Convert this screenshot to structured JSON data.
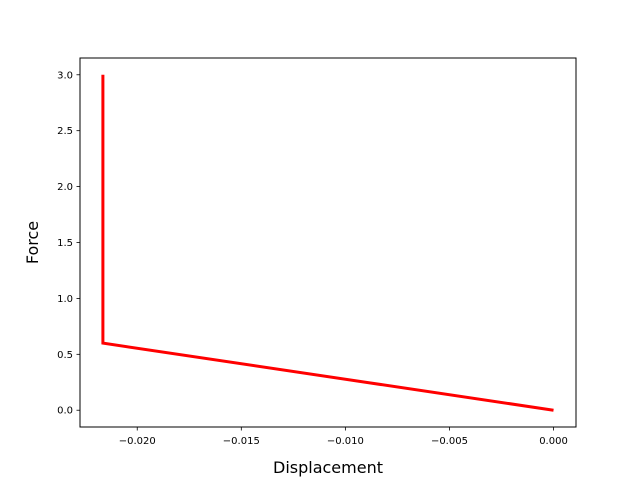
{
  "chart_data": {
    "type": "line",
    "title": "",
    "xlabel": "Displacement",
    "ylabel": "Force",
    "xlim": [
      -0.02275,
      0.00108
    ],
    "ylim": [
      -0.15,
      3.15
    ],
    "grid": false,
    "legend": "none",
    "x_ticks": [
      {
        "value": -0.02,
        "label": "−0.020"
      },
      {
        "value": -0.015,
        "label": "−0.015"
      },
      {
        "value": -0.01,
        "label": "−0.010"
      },
      {
        "value": -0.005,
        "label": "−0.005"
      },
      {
        "value": 0.0,
        "label": "0.000"
      }
    ],
    "y_ticks": [
      {
        "value": 0.0,
        "label": "0.0"
      },
      {
        "value": 0.5,
        "label": "0.5"
      },
      {
        "value": 1.0,
        "label": "1.0"
      },
      {
        "value": 1.5,
        "label": "1.5"
      },
      {
        "value": 2.0,
        "label": "2.0"
      },
      {
        "value": 2.5,
        "label": "2.5"
      },
      {
        "value": 3.0,
        "label": "3.0"
      }
    ],
    "series": [
      {
        "color": "#ff0000",
        "x": [
          0.0,
          -0.02165,
          -0.02165
        ],
        "y": [
          0.0,
          0.6,
          3.0
        ]
      }
    ]
  }
}
